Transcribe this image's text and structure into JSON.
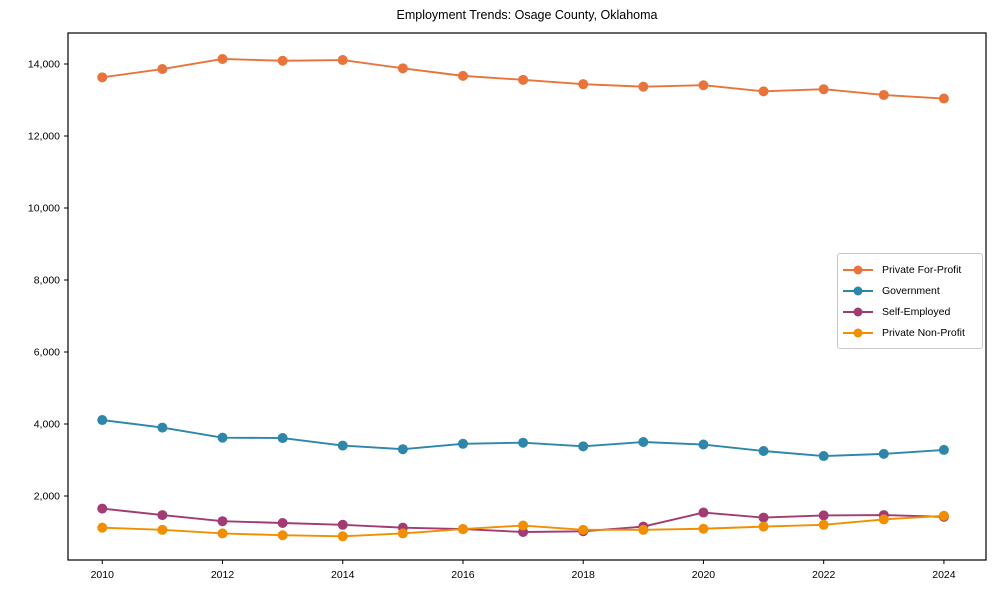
{
  "figure": {
    "background": "#ffffff",
    "axis_color": "#000000",
    "tick_label_color": "#000000"
  },
  "chart_data": {
    "type": "line",
    "title": "Employment Trends: Osage County, Oklahoma",
    "xlabel": "",
    "ylabel": "",
    "grid": false,
    "legend_position": "center right",
    "marker": "circle",
    "x": [
      2010,
      2011,
      2012,
      2013,
      2014,
      2015,
      2016,
      2017,
      2018,
      2019,
      2020,
      2021,
      2022,
      2023,
      2024
    ],
    "series": [
      {
        "name": "Private For-Profit",
        "color": "#e8743b",
        "values": [
          13630,
          13860,
          14140,
          14090,
          14110,
          13880,
          13670,
          13560,
          13440,
          13370,
          13410,
          13240,
          13300,
          13140,
          13040
        ]
      },
      {
        "name": "Government",
        "color": "#2e86ab",
        "values": [
          4110,
          3900,
          3620,
          3610,
          3400,
          3300,
          3450,
          3480,
          3380,
          3500,
          3430,
          3250,
          3110,
          3170,
          3280
        ]
      },
      {
        "name": "Self-Employed",
        "color": "#a23b72",
        "values": [
          1650,
          1470,
          1300,
          1250,
          1200,
          1120,
          1080,
          1000,
          1020,
          1150,
          1540,
          1400,
          1460,
          1470,
          1420
        ]
      },
      {
        "name": "Private Non-Profit",
        "color": "#f18f01",
        "values": [
          1120,
          1060,
          960,
          910,
          880,
          960,
          1080,
          1180,
          1060,
          1060,
          1090,
          1150,
          1200,
          1350,
          1450
        ]
      }
    ],
    "x_ticks": [
      2010,
      2012,
      2014,
      2016,
      2018,
      2020,
      2022,
      2024
    ],
    "x_tick_labels": [
      "2010",
      "2012",
      "2014",
      "2016",
      "2018",
      "2020",
      "2022",
      "2024"
    ],
    "y_ticks": [
      2000,
      4000,
      6000,
      8000,
      10000,
      12000,
      14000
    ],
    "y_tick_labels": [
      "2,000",
      "4,000",
      "6,000",
      "8,000",
      "10,000",
      "12,000",
      "14,000"
    ],
    "xlim": [
      2009.43,
      2024.7
    ],
    "ylim": [
      222,
      14861
    ]
  }
}
